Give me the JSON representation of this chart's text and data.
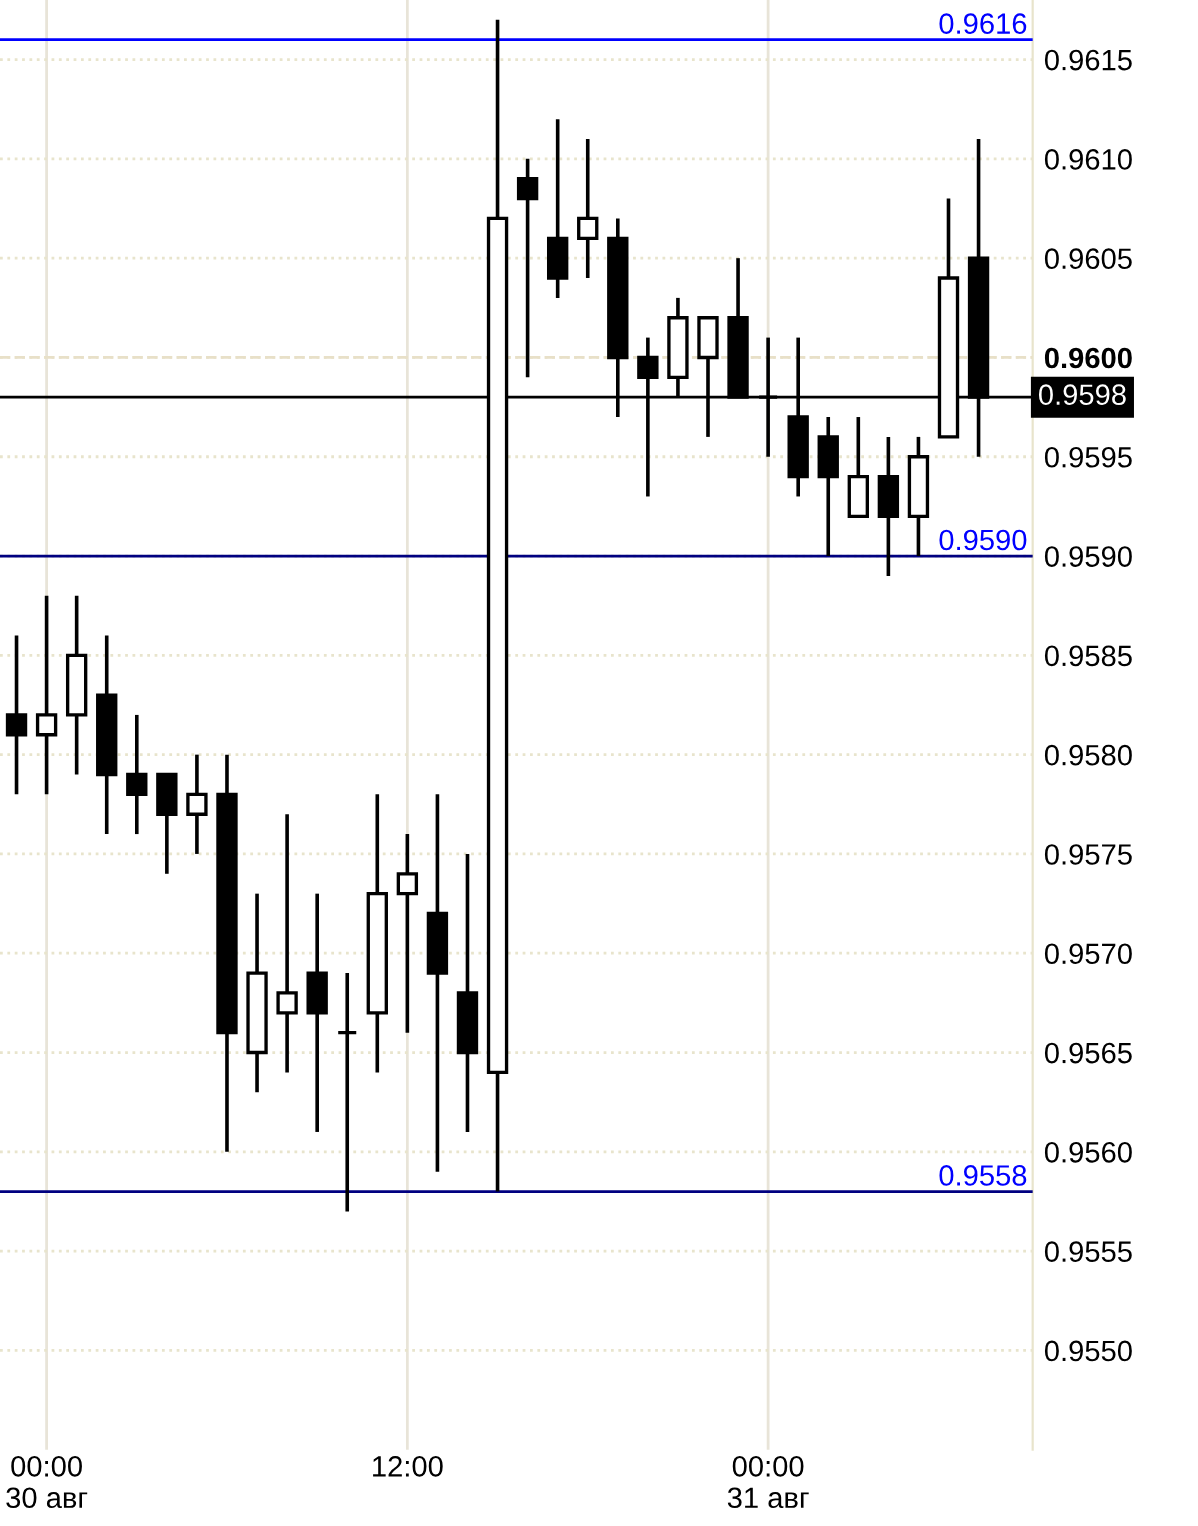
{
  "chart_data": {
    "type": "candlestick",
    "categories": [
      null,
      "00:00\n30 авг",
      null,
      null,
      null,
      null,
      null,
      null,
      null,
      null,
      null,
      null,
      null,
      "12:00",
      null,
      null,
      null,
      null,
      null,
      null,
      null,
      null,
      null,
      null,
      null,
      "00:00\n31 авг",
      null,
      null,
      null,
      null,
      null,
      null,
      null
    ],
    "color": "#000000",
    "ohlc": [
      [
        0.9582,
        0.9586,
        0.9578,
        0.9581
      ],
      [
        0.9581,
        0.9588,
        0.9578,
        0.9582
      ],
      [
        0.9582,
        0.9588,
        0.9579,
        0.9585
      ],
      [
        0.9583,
        0.9586,
        0.9576,
        0.9579
      ],
      [
        0.9579,
        0.9582,
        0.9576,
        0.9578
      ],
      [
        0.9579,
        0.9579,
        0.9574,
        0.9577
      ],
      [
        0.9577,
        0.958,
        0.9575,
        0.9578
      ],
      [
        0.9578,
        0.958,
        0.956,
        0.9566
      ],
      [
        0.9565,
        0.9573,
        0.9563,
        0.9569
      ],
      [
        0.9567,
        0.9577,
        0.9564,
        0.9568
      ],
      [
        0.9569,
        0.9573,
        0.9561,
        0.9567
      ],
      [
        0.9566,
        0.9569,
        0.9557,
        0.9566
      ],
      [
        0.9567,
        0.9578,
        0.9564,
        0.9573
      ],
      [
        0.9573,
        0.9576,
        0.9566,
        0.9574
      ],
      [
        0.9572,
        0.9578,
        0.9559,
        0.9569
      ],
      [
        0.9568,
        0.9575,
        0.9561,
        0.9565
      ],
      [
        0.9564,
        0.9617,
        0.9558,
        0.9607
      ],
      [
        0.9609,
        0.961,
        0.9599,
        0.9608
      ],
      [
        0.9606,
        0.9612,
        0.9603,
        0.9604
      ],
      [
        0.9606,
        0.9611,
        0.9604,
        0.9607
      ],
      [
        0.9606,
        0.9607,
        0.9597,
        0.96
      ],
      [
        0.96,
        0.9601,
        0.9593,
        0.9599
      ],
      [
        0.9599,
        0.9603,
        0.9598,
        0.9602
      ],
      [
        0.96,
        0.9602,
        0.9596,
        0.9602
      ],
      [
        0.9602,
        0.9605,
        0.9598,
        0.9598
      ],
      [
        0.9598,
        0.9601,
        0.9595,
        0.9598
      ],
      [
        0.9597,
        0.9601,
        0.9593,
        0.9594
      ],
      [
        0.9596,
        0.9597,
        0.959,
        0.9594
      ],
      [
        0.9592,
        0.9597,
        0.9592,
        0.9594
      ],
      [
        0.9594,
        0.9596,
        0.9589,
        0.9592
      ],
      [
        0.9592,
        0.9596,
        0.959,
        0.9595
      ],
      [
        0.9596,
        0.9608,
        0.9596,
        0.9604
      ],
      [
        0.9605,
        0.9611,
        0.9595,
        0.9598
      ]
    ],
    "ylim": [
      0.9545,
      0.9618
    ],
    "yticks": [
      {
        "value": 0.955,
        "label": "0.9550"
      },
      0.9555,
      {
        "value": 0.956,
        "label": "0.9560"
      },
      0.9565,
      {
        "value": 0.957,
        "label": "0.9570"
      },
      0.9575,
      {
        "value": 0.958,
        "label": "0.9580"
      },
      0.9585,
      {
        "value": 0.959,
        "label": "0.9590"
      },
      0.9595,
      {
        "value": 0.96,
        "label": "0.9600"
      },
      0.9605,
      {
        "value": 0.961,
        "label": "0.9610"
      },
      0.9615
    ],
    "grid": true,
    "ref_lines": [
      {
        "axis": "y",
        "value": 0.9616,
        "label": "0.9616",
        "color": "#0000ff"
      },
      {
        "axis": "y",
        "value": 0.96,
        "color": "#e8e0c8",
        "line_style": "dashed"
      },
      {
        "axis": "y",
        "value": 0.9598,
        "label": "0.9598",
        "color": "#000000"
      },
      {
        "axis": "y",
        "value": 0.959,
        "label": "0.9590",
        "color": "#000080"
      },
      {
        "axis": "y",
        "value": 0.9558,
        "label": "0.9558",
        "color": "#000080"
      }
    ]
  }
}
